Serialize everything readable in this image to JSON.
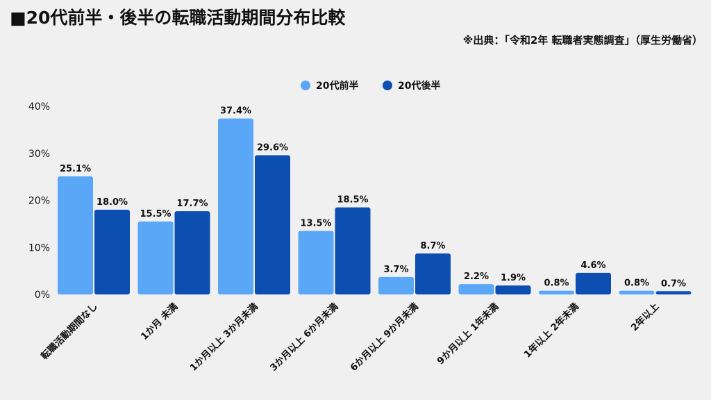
{
  "header": {
    "title": "■20代前半・後半の転職活動期間分布比較",
    "source": "※出典：「令和2年 転職者実態調査」（厚生労働省）"
  },
  "colors": {
    "series1": "#5ba7f7",
    "series2": "#0d4fb0"
  },
  "chart_data": {
    "type": "bar",
    "title": "20代前半・後半の転職活動期間分布比較",
    "xlabel": "",
    "ylabel": "",
    "ylim": [
      0,
      40
    ],
    "yticks": [
      0,
      10,
      20,
      30,
      40
    ],
    "ytick_labels": [
      "0%",
      "10%",
      "20%",
      "30%",
      "40%"
    ],
    "grid": false,
    "legend": "top-center",
    "categories": [
      "転職活動期間なし",
      "1か月 未満",
      "1か月以上 3か月未満",
      "3か月以上 6か月未満",
      "6か月以上 9か月未満",
      "9か月以上 1年未満",
      "1年以上 2年未満",
      "2年以上"
    ],
    "series": [
      {
        "name": "20代前半",
        "values": [
          25.1,
          15.5,
          37.4,
          13.5,
          3.7,
          2.2,
          0.8,
          0.8
        ],
        "labels": [
          "25.1%",
          "15.5%",
          "37.4%",
          "13.5%",
          "3.7%",
          "2.2%",
          "0.8%",
          "0.8%"
        ]
      },
      {
        "name": "20代後半",
        "values": [
          18.0,
          17.7,
          29.6,
          18.5,
          8.7,
          1.9,
          4.6,
          0.7
        ],
        "labels": [
          "18.0%",
          "17.7%",
          "29.6%",
          "18.5%",
          "8.7%",
          "1.9%",
          "4.6%",
          "0.7%"
        ]
      }
    ]
  }
}
